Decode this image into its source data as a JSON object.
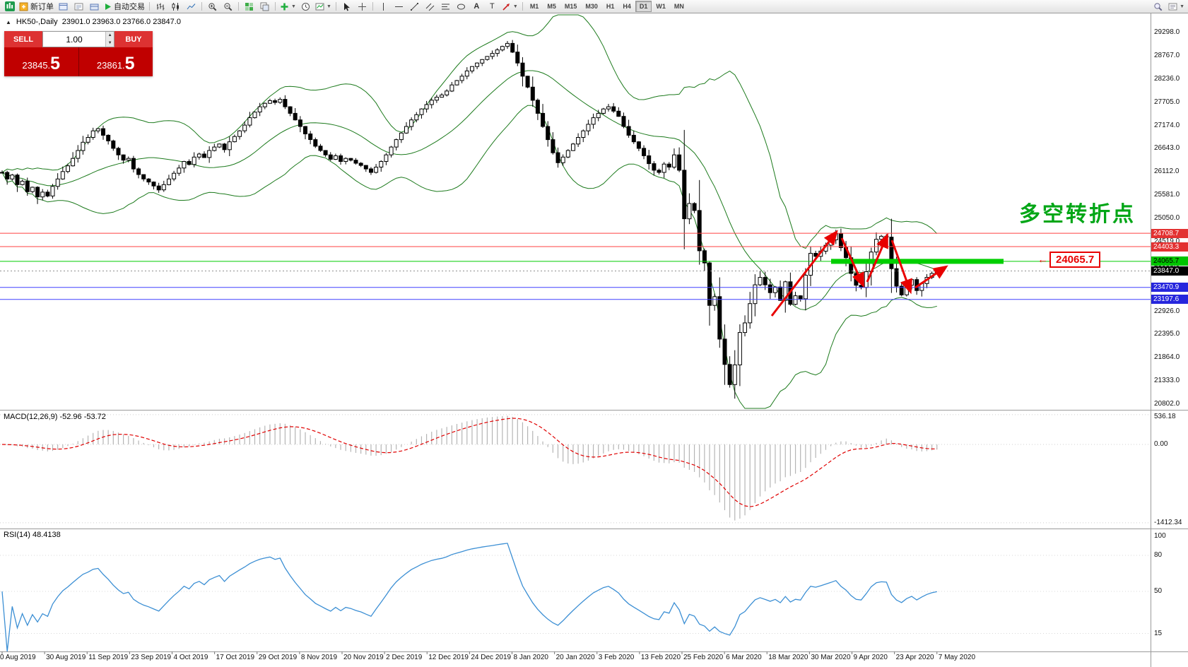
{
  "toolbar": {
    "new_order": "新订单",
    "auto_trading": "自动交易",
    "timeframes": [
      "M1",
      "M5",
      "M15",
      "M30",
      "H1",
      "H4",
      "D1",
      "W1",
      "MN"
    ],
    "active_timeframe": "D1",
    "text_tool": "A",
    "label_tool": "T"
  },
  "trade_panel": {
    "sell_label": "SELL",
    "buy_label": "BUY",
    "volume": "1.00",
    "sell_price": "23845.5",
    "buy_price": "23861.5",
    "sell_main": "23845.",
    "sell_big": "5",
    "buy_main": "23861.",
    "buy_big": "5"
  },
  "chart": {
    "symbol_info": "HK50-,Daily",
    "ohlc": "23901.0 23963.0 23766.0 23847.0",
    "annotation": "多空转折点",
    "price_tag": "24065.7",
    "macd_label": "MACD(12,26,9) -52.96 -53.72",
    "rsi_label": "RSI(14) 48.4138"
  },
  "colors": {
    "bull_candle": "#ffffff",
    "bear_candle": "#000000",
    "bollinger": "#1c7a1c",
    "macd_signal": "#e00000",
    "rsi_line": "#3c8fd4",
    "annotation": "#00a616",
    "level_red": "#ff4040",
    "level_green": "#00cc00",
    "level_blue": "#4040ff",
    "sell_buy_red": "#c00000"
  },
  "chart_data": {
    "type": "candlestick",
    "symbol": "HK50-",
    "period": "Daily",
    "ohlc_line": {
      "open": 23901.0,
      "high": 23963.0,
      "low": 23766.0,
      "close": 23847.0
    },
    "x_labels": [
      "0 Aug 2019",
      "30 Aug 2019",
      "11 Sep 2019",
      "23 Sep 2019",
      "4 Oct 2019",
      "17 Oct 2019",
      "29 Oct 2019",
      "8 Nov 2019",
      "20 Nov 2019",
      "2 Dec 2019",
      "12 Dec 2019",
      "24 Dec 2019",
      "8 Jan 2020",
      "20 Jan 2020",
      "3 Feb 2020",
      "13 Feb 2020",
      "25 Feb 2020",
      "6 Mar 2020",
      "18 Mar 2020",
      "30 Mar 2020",
      "9 Apr 2020",
      "23 Apr 2020",
      "7 May 2020"
    ],
    "y_axis_ticks": [
      29298.0,
      28767.0,
      28236.0,
      27705.0,
      27174.0,
      26643.0,
      26112.0,
      25581.0,
      25050.0,
      24519.0,
      23988.0,
      23457.0,
      22926.0,
      22395.0,
      21864.0,
      21333.0,
      20802.0
    ],
    "closes": [
      26100,
      25950,
      26040,
      25820,
      25900,
      25660,
      25760,
      25540,
      25650,
      25560,
      25780,
      25950,
      26120,
      26250,
      26420,
      26600,
      26790,
      26900,
      27050,
      27100,
      26950,
      26820,
      26650,
      26500,
      26380,
      26420,
      26180,
      26050,
      25950,
      25880,
      25790,
      25700,
      25820,
      25950,
      26080,
      26200,
      26350,
      26280,
      26450,
      26520,
      26440,
      26600,
      26680,
      26750,
      26620,
      26800,
      26920,
      27050,
      27180,
      27350,
      27480,
      27600,
      27680,
      27740,
      27700,
      27770,
      27600,
      27450,
      27300,
      27150,
      26980,
      26850,
      26700,
      26600,
      26500,
      26400,
      26480,
      26350,
      26420,
      26380,
      26310,
      26260,
      26180,
      26100,
      26220,
      26350,
      26500,
      26680,
      26850,
      27000,
      27150,
      27300,
      27420,
      27550,
      27650,
      27750,
      27820,
      27870,
      27960,
      28100,
      28200,
      28300,
      28420,
      28520,
      28600,
      28680,
      28750,
      28820,
      28900,
      28980,
      29050,
      28850,
      28600,
      28300,
      28050,
      27750,
      27450,
      27150,
      26850,
      26550,
      26320,
      26450,
      26600,
      26750,
      26900,
      27050,
      27200,
      27350,
      27450,
      27550,
      27600,
      27500,
      27380,
      27150,
      26950,
      26800,
      26650,
      26480,
      26300,
      26150,
      26100,
      26290,
      26220,
      26500,
      26150,
      25040,
      25390,
      25230,
      24310,
      24030,
      23060,
      23260,
      22290,
      21710,
      21250,
      21700,
      22440,
      22660,
      23100,
      23530,
      23700,
      23530,
      23350,
      23480,
      23175,
      23600,
      23085,
      23280,
      23210,
      23750,
      24250,
      24180,
      24300,
      24435,
      24560,
      24700,
      24380,
      24150,
      23790,
      23520,
      23470,
      23830,
      24280,
      24570,
      24640,
      24620,
      23900,
      23500,
      23300,
      23520,
      23650,
      23400,
      23560,
      23700,
      23790,
      23847
    ],
    "levels": [
      {
        "price": 24708.7,
        "color": "red"
      },
      {
        "price": 24403.3,
        "color": "red"
      },
      {
        "price": 24065.7,
        "color": "green",
        "highlighted": true
      },
      {
        "price": 23847.0,
        "color": "black",
        "style": "current"
      },
      {
        "price": 23470.9,
        "color": "blue"
      },
      {
        "price": 23197.6,
        "color": "blue"
      }
    ],
    "indicators": {
      "bollinger": {
        "period": 20,
        "deviation": 2
      },
      "macd": {
        "fast": 12,
        "slow": 26,
        "signal": 9,
        "value": -52.96,
        "signal_value": -53.72,
        "axis_ticks": [
          536.18,
          0,
          -1412.34
        ]
      },
      "rsi": {
        "period": 14,
        "value": 48.4138,
        "axis_ticks": [
          100,
          80,
          50,
          15
        ]
      }
    }
  }
}
